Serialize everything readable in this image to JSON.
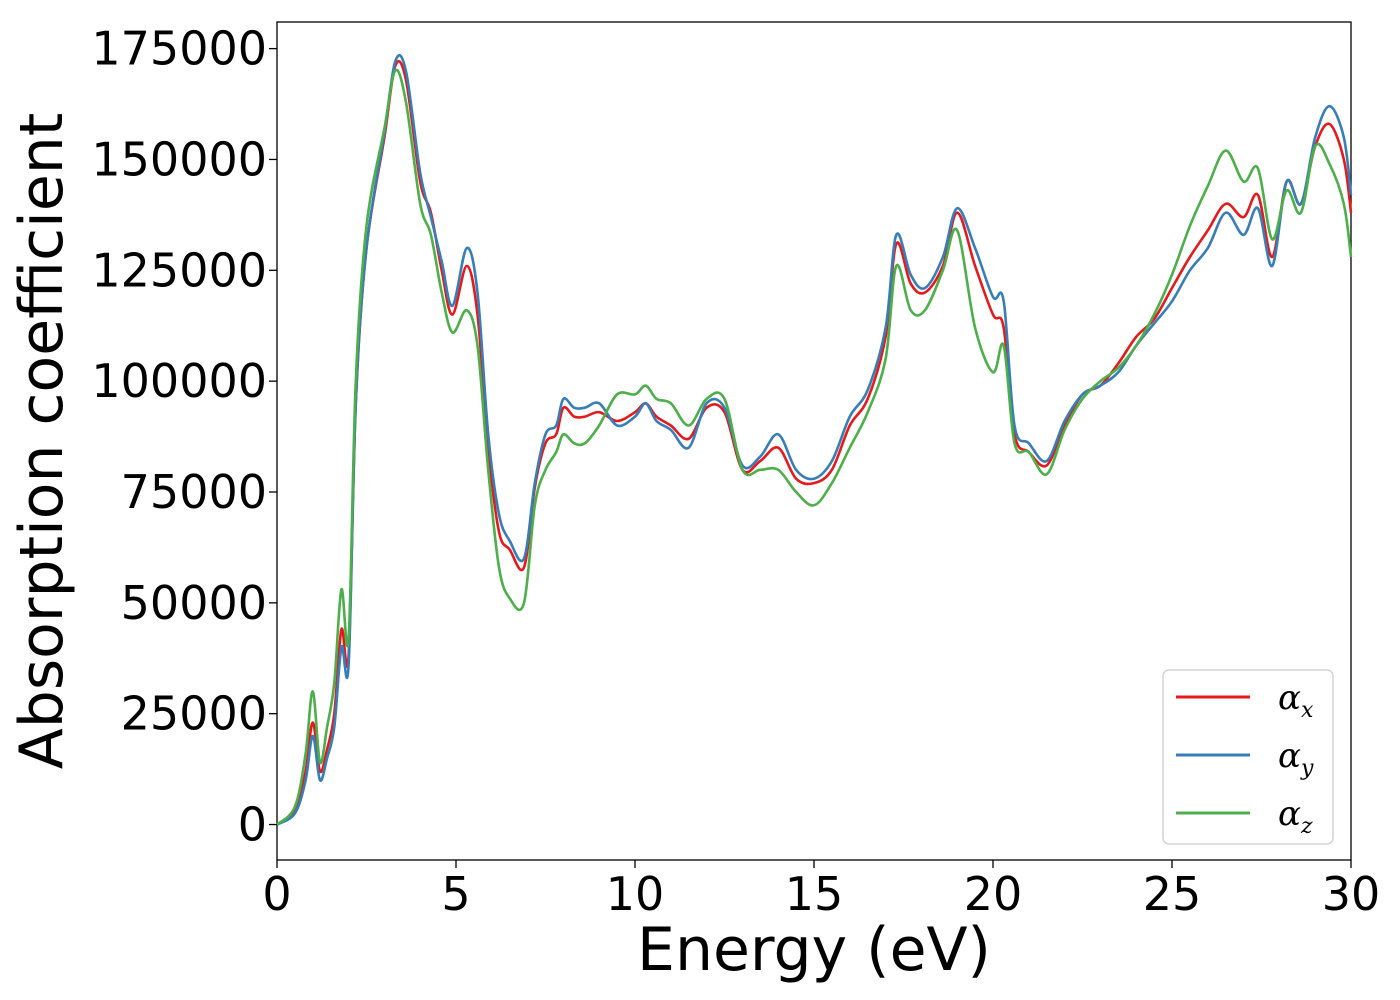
{
  "chart_data": {
    "type": "line",
    "xlabel": "Energy (eV)",
    "ylabel": "Absorption coefficient",
    "xlim": [
      0,
      30
    ],
    "ylim": [
      -8000,
      181000
    ],
    "xticks": [
      0,
      5,
      10,
      15,
      20,
      25,
      30
    ],
    "xtick_labels": [
      "0",
      "5",
      "10",
      "15",
      "20",
      "25",
      "30"
    ],
    "yticks": [
      0,
      25000,
      50000,
      75000,
      100000,
      125000,
      150000,
      175000
    ],
    "ytick_labels": [
      "0",
      "25000",
      "50000",
      "75000",
      "100000",
      "125000",
      "150000",
      "175000"
    ],
    "grid": false,
    "legend_position": "lower-right",
    "series": [
      {
        "name": "α_x",
        "label_main": "α",
        "label_sub": "x",
        "color": "#e41a1c",
        "x": [
          0,
          0.5,
          0.8,
          1.0,
          1.2,
          1.4,
          1.6,
          1.8,
          2.0,
          2.2,
          2.5,
          3.0,
          3.3,
          3.6,
          4.0,
          4.3,
          4.6,
          4.9,
          5.3,
          5.6,
          5.9,
          6.2,
          6.5,
          6.9,
          7.2,
          7.5,
          7.8,
          8.0,
          8.3,
          8.6,
          9.0,
          9.5,
          10.0,
          10.3,
          10.6,
          11.0,
          11.5,
          12.0,
          12.5,
          13.0,
          13.5,
          14.0,
          14.5,
          15.0,
          15.5,
          16.0,
          16.5,
          17.0,
          17.3,
          17.7,
          18.1,
          18.6,
          19.0,
          19.5,
          20.0,
          20.3,
          20.6,
          21.0,
          21.5,
          22.0,
          22.5,
          23.0,
          23.5,
          24.0,
          24.5,
          25.0,
          25.5,
          26.0,
          26.5,
          27.0,
          27.4,
          27.8,
          28.2,
          28.6,
          29.0,
          29.4,
          29.8,
          30.0
        ],
        "y": [
          0,
          3000,
          12000,
          23000,
          12000,
          17000,
          25000,
          44000,
          38000,
          95000,
          130000,
          155000,
          171000,
          168000,
          145000,
          138000,
          125000,
          115000,
          126000,
          115000,
          85000,
          66000,
          62000,
          58000,
          76000,
          86000,
          88000,
          94000,
          92000,
          92000,
          93000,
          91000,
          93000,
          95000,
          92000,
          90000,
          87000,
          94000,
          93000,
          80000,
          82000,
          85000,
          78000,
          77000,
          80000,
          90000,
          96000,
          110000,
          131000,
          122000,
          120000,
          126000,
          138000,
          126000,
          115000,
          112000,
          88000,
          84000,
          81000,
          90000,
          97000,
          99000,
          104000,
          110000,
          114000,
          121000,
          128000,
          134000,
          140000,
          137000,
          142000,
          128000,
          145000,
          140000,
          153000,
          158000,
          150000,
          138000
        ]
      },
      {
        "name": "α_y",
        "label_main": "α",
        "label_sub": "y",
        "color": "#377eb8",
        "x": [
          0,
          0.5,
          0.8,
          1.0,
          1.2,
          1.4,
          1.6,
          1.8,
          2.0,
          2.2,
          2.5,
          3.0,
          3.3,
          3.6,
          4.0,
          4.3,
          4.6,
          4.9,
          5.3,
          5.6,
          5.9,
          6.2,
          6.5,
          6.9,
          7.2,
          7.5,
          7.8,
          8.0,
          8.3,
          8.6,
          9.0,
          9.5,
          10.0,
          10.3,
          10.6,
          11.0,
          11.5,
          12.0,
          12.5,
          13.0,
          13.5,
          14.0,
          14.5,
          15.0,
          15.5,
          16.0,
          16.5,
          17.0,
          17.3,
          17.7,
          18.1,
          18.6,
          19.0,
          19.5,
          20.0,
          20.3,
          20.6,
          21.0,
          21.5,
          22.0,
          22.5,
          23.0,
          23.5,
          24.0,
          24.5,
          25.0,
          25.5,
          26.0,
          26.5,
          27.0,
          27.4,
          27.8,
          28.2,
          28.6,
          29.0,
          29.4,
          29.8,
          30.0
        ],
        "y": [
          0,
          2500,
          10000,
          20000,
          10000,
          15000,
          22000,
          40000,
          36000,
          95000,
          130000,
          156000,
          172000,
          170000,
          147000,
          137000,
          127000,
          117000,
          130000,
          120000,
          88000,
          70000,
          64000,
          60000,
          77000,
          88000,
          90000,
          96000,
          94000,
          94000,
          95000,
          90000,
          92000,
          95000,
          91000,
          89000,
          85000,
          95000,
          94000,
          81000,
          83000,
          88000,
          80000,
          78000,
          82000,
          92000,
          98000,
          112000,
          133000,
          124000,
          121000,
          128000,
          139000,
          130000,
          119000,
          118000,
          90000,
          86000,
          82000,
          91000,
          97000,
          99000,
          102000,
          108000,
          113000,
          118000,
          125000,
          130000,
          138000,
          133000,
          139000,
          126000,
          145000,
          140000,
          155000,
          162000,
          155000,
          142000
        ]
      },
      {
        "name": "α_z",
        "label_main": "α",
        "label_sub": "z",
        "color": "#4daf4a",
        "x": [
          0,
          0.5,
          0.8,
          1.0,
          1.2,
          1.4,
          1.6,
          1.8,
          2.0,
          2.2,
          2.5,
          3.0,
          3.3,
          3.6,
          4.0,
          4.3,
          4.6,
          4.9,
          5.3,
          5.6,
          5.9,
          6.2,
          6.5,
          6.9,
          7.2,
          7.5,
          7.8,
          8.0,
          8.3,
          8.6,
          9.0,
          9.5,
          10.0,
          10.3,
          10.6,
          11.0,
          11.5,
          12.0,
          12.5,
          13.0,
          13.5,
          14.0,
          14.5,
          15.0,
          15.5,
          16.0,
          16.5,
          17.0,
          17.3,
          17.7,
          18.1,
          18.6,
          19.0,
          19.5,
          20.0,
          20.3,
          20.6,
          21.0,
          21.5,
          22.0,
          22.5,
          23.0,
          23.5,
          24.0,
          24.5,
          25.0,
          25.5,
          26.0,
          26.5,
          27.0,
          27.4,
          27.8,
          28.2,
          28.6,
          29.0,
          29.4,
          29.8,
          30.0
        ],
        "y": [
          0,
          4000,
          16000,
          30000,
          14000,
          22000,
          32000,
          53000,
          42000,
          100000,
          135000,
          157000,
          170000,
          163000,
          140000,
          133000,
          120000,
          111000,
          116000,
          108000,
          80000,
          58000,
          51000,
          50000,
          72000,
          80000,
          84000,
          88000,
          86000,
          86000,
          90000,
          97000,
          97000,
          99000,
          96000,
          95000,
          90000,
          96000,
          96000,
          80000,
          80000,
          80000,
          75000,
          72000,
          77000,
          85000,
          93000,
          105000,
          126000,
          116000,
          116000,
          125000,
          134000,
          112000,
          102000,
          108000,
          86000,
          84000,
          79000,
          89000,
          96000,
          100000,
          103000,
          108000,
          115000,
          124000,
          135000,
          144000,
          152000,
          145000,
          148000,
          132000,
          143000,
          138000,
          153000,
          149000,
          140000,
          128000
        ]
      }
    ]
  }
}
